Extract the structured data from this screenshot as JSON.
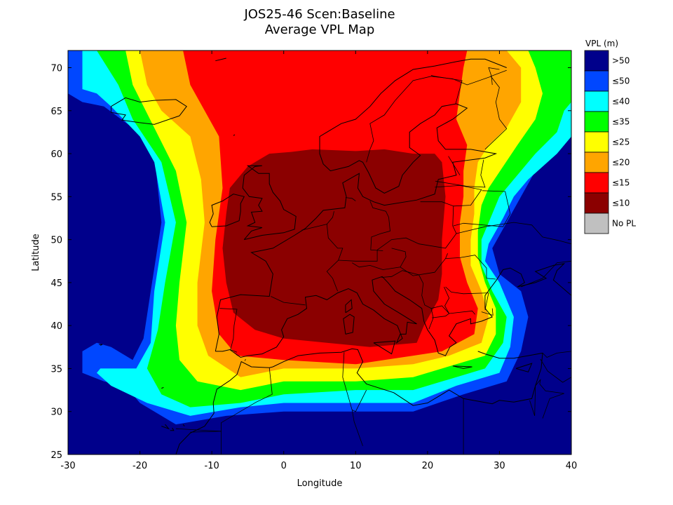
{
  "chart_data": {
    "type": "heatmap",
    "title": "JOS25-46 Scen:Baseline",
    "subtitle": "Average VPL Map",
    "xlabel": "Longitude",
    "ylabel": "Latitude",
    "xlim": [
      -30,
      40
    ],
    "ylim": [
      25,
      72
    ],
    "x_ticks": [
      "-30",
      "-20",
      "-10",
      "0",
      "10",
      "20",
      "30",
      "40"
    ],
    "y_ticks": [
      "25",
      "30",
      "35",
      "40",
      "45",
      "50",
      "55",
      "60",
      "65",
      "70"
    ],
    "grid": false,
    "legend": {
      "title": "VPL (m)",
      "position": "right",
      "entries": [
        {
          "label": ">50",
          "color": "#00008b"
        },
        {
          "label": "≤50",
          "color": "#0047ff"
        },
        {
          "label": "≤40",
          "color": "#00ffff"
        },
        {
          "label": "≤35",
          "color": "#00ff00"
        },
        {
          "label": "≤25",
          "color": "#ffff00"
        },
        {
          "label": "≤20",
          "color": "#ffa500"
        },
        {
          "label": "≤15",
          "color": "#ff0000"
        },
        {
          "label": "≤10",
          "color": "#8b0000"
        },
        {
          "label": "No PL",
          "color": "#c0c0c0"
        }
      ]
    },
    "regions": [
      {
        "class": ">50",
        "polygon": [
          [
            -30,
            25
          ],
          [
            40,
            25
          ],
          [
            40,
            72
          ],
          [
            -30,
            72
          ]
        ]
      },
      {
        "class": "≤50",
        "polygon": [
          [
            -30,
            67
          ],
          [
            -28,
            66
          ],
          [
            -25,
            65.5
          ],
          [
            -21,
            63
          ],
          [
            -18,
            60
          ],
          [
            -17,
            52
          ],
          [
            -18.5,
            44
          ],
          [
            -19.5,
            38.5
          ],
          [
            -21,
            36
          ],
          [
            -24,
            37.5
          ],
          [
            -26,
            38
          ],
          [
            -28,
            37
          ],
          [
            -28,
            34.5
          ],
          [
            -25,
            33.5
          ],
          [
            -22,
            33
          ],
          [
            -20,
            31
          ],
          [
            -15,
            28.5
          ],
          [
            -8,
            29.5
          ],
          [
            0,
            30
          ],
          [
            10,
            30
          ],
          [
            18,
            30
          ],
          [
            25,
            32
          ],
          [
            31,
            33.5
          ],
          [
            33,
            37
          ],
          [
            34,
            41
          ],
          [
            33,
            44
          ],
          [
            30,
            46
          ],
          [
            29,
            49
          ],
          [
            31,
            52
          ],
          [
            33,
            55
          ],
          [
            35,
            58
          ],
          [
            39,
            61
          ],
          [
            40,
            64
          ],
          [
            40,
            72
          ],
          [
            -30,
            72
          ],
          [
            -30,
            68.5
          ]
        ]
      },
      {
        "class": "≤40",
        "polygon": [
          [
            -28,
            67.5
          ],
          [
            -26,
            67
          ],
          [
            -24,
            65.5
          ],
          [
            -20,
            62
          ],
          [
            -18,
            59
          ],
          [
            -16.5,
            52
          ],
          [
            -18,
            44
          ],
          [
            -18.5,
            38
          ],
          [
            -20.5,
            35
          ],
          [
            -23,
            35
          ],
          [
            -25.5,
            35
          ],
          [
            -26,
            34.5
          ],
          [
            -24,
            33
          ],
          [
            -19,
            31
          ],
          [
            -13,
            29.5
          ],
          [
            -6,
            30.5
          ],
          [
            0,
            31
          ],
          [
            10,
            31
          ],
          [
            18,
            31
          ],
          [
            24,
            33
          ],
          [
            30,
            34.5
          ],
          [
            31.5,
            37.5
          ],
          [
            32,
            41
          ],
          [
            30,
            45
          ],
          [
            28,
            47.5
          ],
          [
            28.5,
            49.5
          ],
          [
            30.5,
            52.5
          ],
          [
            32,
            55
          ],
          [
            34,
            57
          ],
          [
            38,
            60
          ],
          [
            40,
            62
          ],
          [
            40,
            72
          ],
          [
            -28,
            72
          ]
        ]
      },
      {
        "class": "≤35",
        "polygon": [
          [
            -26,
            72
          ],
          [
            -23,
            68
          ],
          [
            -21,
            64
          ],
          [
            -17,
            59
          ],
          [
            -15,
            52
          ],
          [
            -16.5,
            45
          ],
          [
            -17.5,
            39.5
          ],
          [
            -19,
            35
          ],
          [
            -17,
            32
          ],
          [
            -13,
            30.5
          ],
          [
            -6,
            31
          ],
          [
            0,
            32
          ],
          [
            10,
            32.5
          ],
          [
            18,
            32.5
          ],
          [
            24,
            34
          ],
          [
            28,
            35
          ],
          [
            30.5,
            38
          ],
          [
            31,
            41
          ],
          [
            29,
            44
          ],
          [
            27.5,
            47
          ],
          [
            27.5,
            50
          ],
          [
            29,
            53
          ],
          [
            30,
            55
          ],
          [
            32,
            57
          ],
          [
            35,
            60
          ],
          [
            38,
            62.5
          ],
          [
            39,
            65
          ],
          [
            40,
            66
          ],
          [
            40,
            72
          ]
        ]
      },
      {
        "class": "≤25",
        "polygon": [
          [
            -22,
            72
          ],
          [
            -21,
            68
          ],
          [
            -18,
            63
          ],
          [
            -15,
            58
          ],
          [
            -13.5,
            52
          ],
          [
            -14.5,
            45
          ],
          [
            -15,
            40
          ],
          [
            -14.5,
            36
          ],
          [
            -12,
            33.5
          ],
          [
            -6,
            32.5
          ],
          [
            0,
            33.5
          ],
          [
            10,
            33.5
          ],
          [
            18,
            34
          ],
          [
            24,
            35.5
          ],
          [
            28,
            36.5
          ],
          [
            29.5,
            39
          ],
          [
            29.5,
            42
          ],
          [
            28,
            45
          ],
          [
            27,
            48
          ],
          [
            27,
            51
          ],
          [
            27.5,
            54
          ],
          [
            28.5,
            56
          ],
          [
            30.5,
            58.5
          ],
          [
            32.5,
            61
          ],
          [
            35,
            64
          ],
          [
            36,
            67
          ],
          [
            35,
            70
          ],
          [
            34,
            72
          ]
        ]
      },
      {
        "class": "≤20",
        "polygon": [
          [
            -20,
            72
          ],
          [
            -19,
            68
          ],
          [
            -17,
            65
          ],
          [
            -13,
            62
          ],
          [
            -11.5,
            57
          ],
          [
            -11,
            52
          ],
          [
            -12,
            45
          ],
          [
            -12,
            40
          ],
          [
            -10.5,
            36.5
          ],
          [
            -6,
            34
          ],
          [
            0,
            35
          ],
          [
            10,
            35
          ],
          [
            18,
            35.5
          ],
          [
            23,
            36.5
          ],
          [
            27.5,
            38
          ],
          [
            28.5,
            41
          ],
          [
            27.5,
            44
          ],
          [
            26,
            47
          ],
          [
            26,
            50
          ],
          [
            26.5,
            53
          ],
          [
            26.5,
            56
          ],
          [
            27,
            59
          ],
          [
            28.5,
            61
          ],
          [
            31,
            63
          ],
          [
            33,
            66
          ],
          [
            33,
            70
          ],
          [
            31,
            72
          ]
        ]
      },
      {
        "class": "≤15",
        "polygon": [
          [
            -14,
            72
          ],
          [
            -13,
            68
          ],
          [
            -11,
            65
          ],
          [
            -9,
            62
          ],
          [
            -8.5,
            56
          ],
          [
            -9.5,
            50
          ],
          [
            -10,
            44
          ],
          [
            -9,
            39
          ],
          [
            -6.5,
            36.5
          ],
          [
            0,
            36
          ],
          [
            10,
            35.5
          ],
          [
            18,
            36.5
          ],
          [
            22,
            37
          ],
          [
            26.5,
            39
          ],
          [
            27,
            42
          ],
          [
            25.5,
            45
          ],
          [
            24.5,
            48
          ],
          [
            24.5,
            52
          ],
          [
            25,
            55
          ],
          [
            25,
            58
          ],
          [
            25.5,
            61
          ],
          [
            24,
            64
          ],
          [
            24.5,
            67
          ],
          [
            25,
            70
          ],
          [
            25.5,
            72
          ]
        ]
      },
      {
        "class": "≤10",
        "polygon": [
          [
            1,
            60.2
          ],
          [
            4,
            60.5
          ],
          [
            10,
            60.3
          ],
          [
            14,
            60.5
          ],
          [
            18,
            60
          ],
          [
            21,
            60
          ],
          [
            22,
            59
          ],
          [
            22.5,
            55
          ],
          [
            22,
            50
          ],
          [
            22,
            46
          ],
          [
            21.5,
            43
          ],
          [
            19.5,
            40
          ],
          [
            18.5,
            38
          ],
          [
            12,
            37.5
          ],
          [
            6,
            38
          ],
          [
            0,
            38.5
          ],
          [
            -4,
            39.5
          ],
          [
            -7,
            41.5
          ],
          [
            -8,
            45
          ],
          [
            -8.5,
            49
          ],
          [
            -8,
            53
          ],
          [
            -7.5,
            56
          ],
          [
            -5,
            58.5
          ],
          [
            -2,
            60
          ]
        ]
      }
    ],
    "overlays": [
      "coastlines",
      "country borders"
    ]
  }
}
